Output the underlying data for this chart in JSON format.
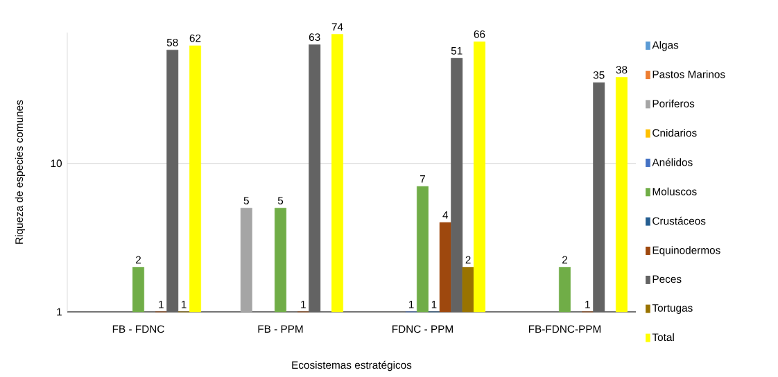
{
  "chart_data": {
    "type": "bar",
    "xlabel": "Ecosistemas estratégicos",
    "ylabel": "Riqueza de especies comunes",
    "categories": [
      "FB - FDNC",
      "FB - PPM",
      "FDNC - PPM",
      "FB-FDNC-PPM"
    ],
    "series": [
      {
        "name": "Algas",
        "color": "#5b9bd5",
        "values": [
          null,
          null,
          null,
          null
        ]
      },
      {
        "name": "Pastos Marinos",
        "color": "#ed7d31",
        "values": [
          null,
          null,
          null,
          null
        ]
      },
      {
        "name": "Poriferos",
        "color": "#a5a5a5",
        "values": [
          null,
          5,
          null,
          null
        ]
      },
      {
        "name": "Cnidarios",
        "color": "#ffc000",
        "values": [
          null,
          null,
          null,
          null
        ]
      },
      {
        "name": "Anélidos",
        "color": "#4472c4",
        "values": [
          null,
          null,
          1,
          null
        ]
      },
      {
        "name": "Moluscos",
        "color": "#70ad47",
        "values": [
          2,
          5,
          7,
          2
        ]
      },
      {
        "name": "Crustáceos",
        "color": "#255e91",
        "values": [
          null,
          null,
          1,
          null
        ]
      },
      {
        "name": "Equinodermos",
        "color": "#9e480e",
        "values": [
          1,
          1,
          4,
          1
        ]
      },
      {
        "name": "Peces",
        "color": "#636363",
        "values": [
          58,
          63,
          51,
          35
        ]
      },
      {
        "name": "Tortugas",
        "color": "#997300",
        "values": [
          1,
          null,
          2,
          null
        ]
      },
      {
        "name": "Total",
        "color": "#ffff00",
        "values": [
          62,
          74,
          66,
          38
        ]
      }
    ],
    "log": "y",
    "ylim": [
      1,
      76
    ],
    "yticks": [
      1,
      10
    ],
    "grid": "y",
    "legend": "right",
    "data_labels": true
  }
}
